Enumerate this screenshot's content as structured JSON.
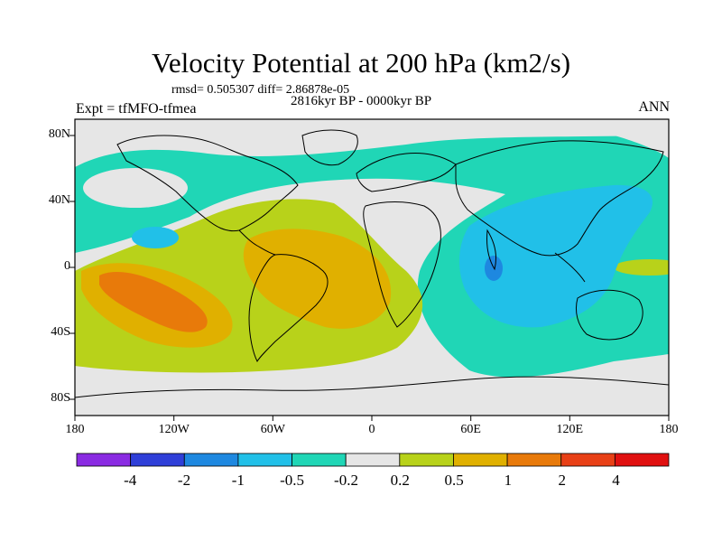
{
  "title": "Velocity Potential at 200 hPa (km2/s)",
  "stats": "rmsd= 0.505307 diff= 2.86878e-05",
  "period": "2816kyr BP - 0000kyr BP",
  "experiment": "Expt = tfMFO-tfmea",
  "season": "ANN",
  "lat_ticks": [
    "80N",
    "40N",
    "0",
    "40S",
    "80S"
  ],
  "lon_ticks": [
    "180",
    "120W",
    "60W",
    "0",
    "60E",
    "120E",
    "180"
  ],
  "colorbar": {
    "levels": [
      "-4",
      "-2",
      "-1",
      "-0.5",
      "-0.2",
      "0.2",
      "0.5",
      "1",
      "2",
      "4"
    ],
    "colors": [
      "#8a2be2",
      "#2f3fd8",
      "#1e88e0",
      "#21c0e8",
      "#20d6b6",
      "#e6e6e6",
      "#b8d21a",
      "#e0b000",
      "#e87a0a",
      "#e84016",
      "#e01010"
    ]
  },
  "fill_colors": {
    "ocean_green": "#20d6b6",
    "light_blue": "#21c0e8",
    "blue": "#1e88e0",
    "neutral": "#e6e6e6",
    "lime": "#b8d21a",
    "gold": "#e0b000",
    "orange": "#e87a0a"
  }
}
